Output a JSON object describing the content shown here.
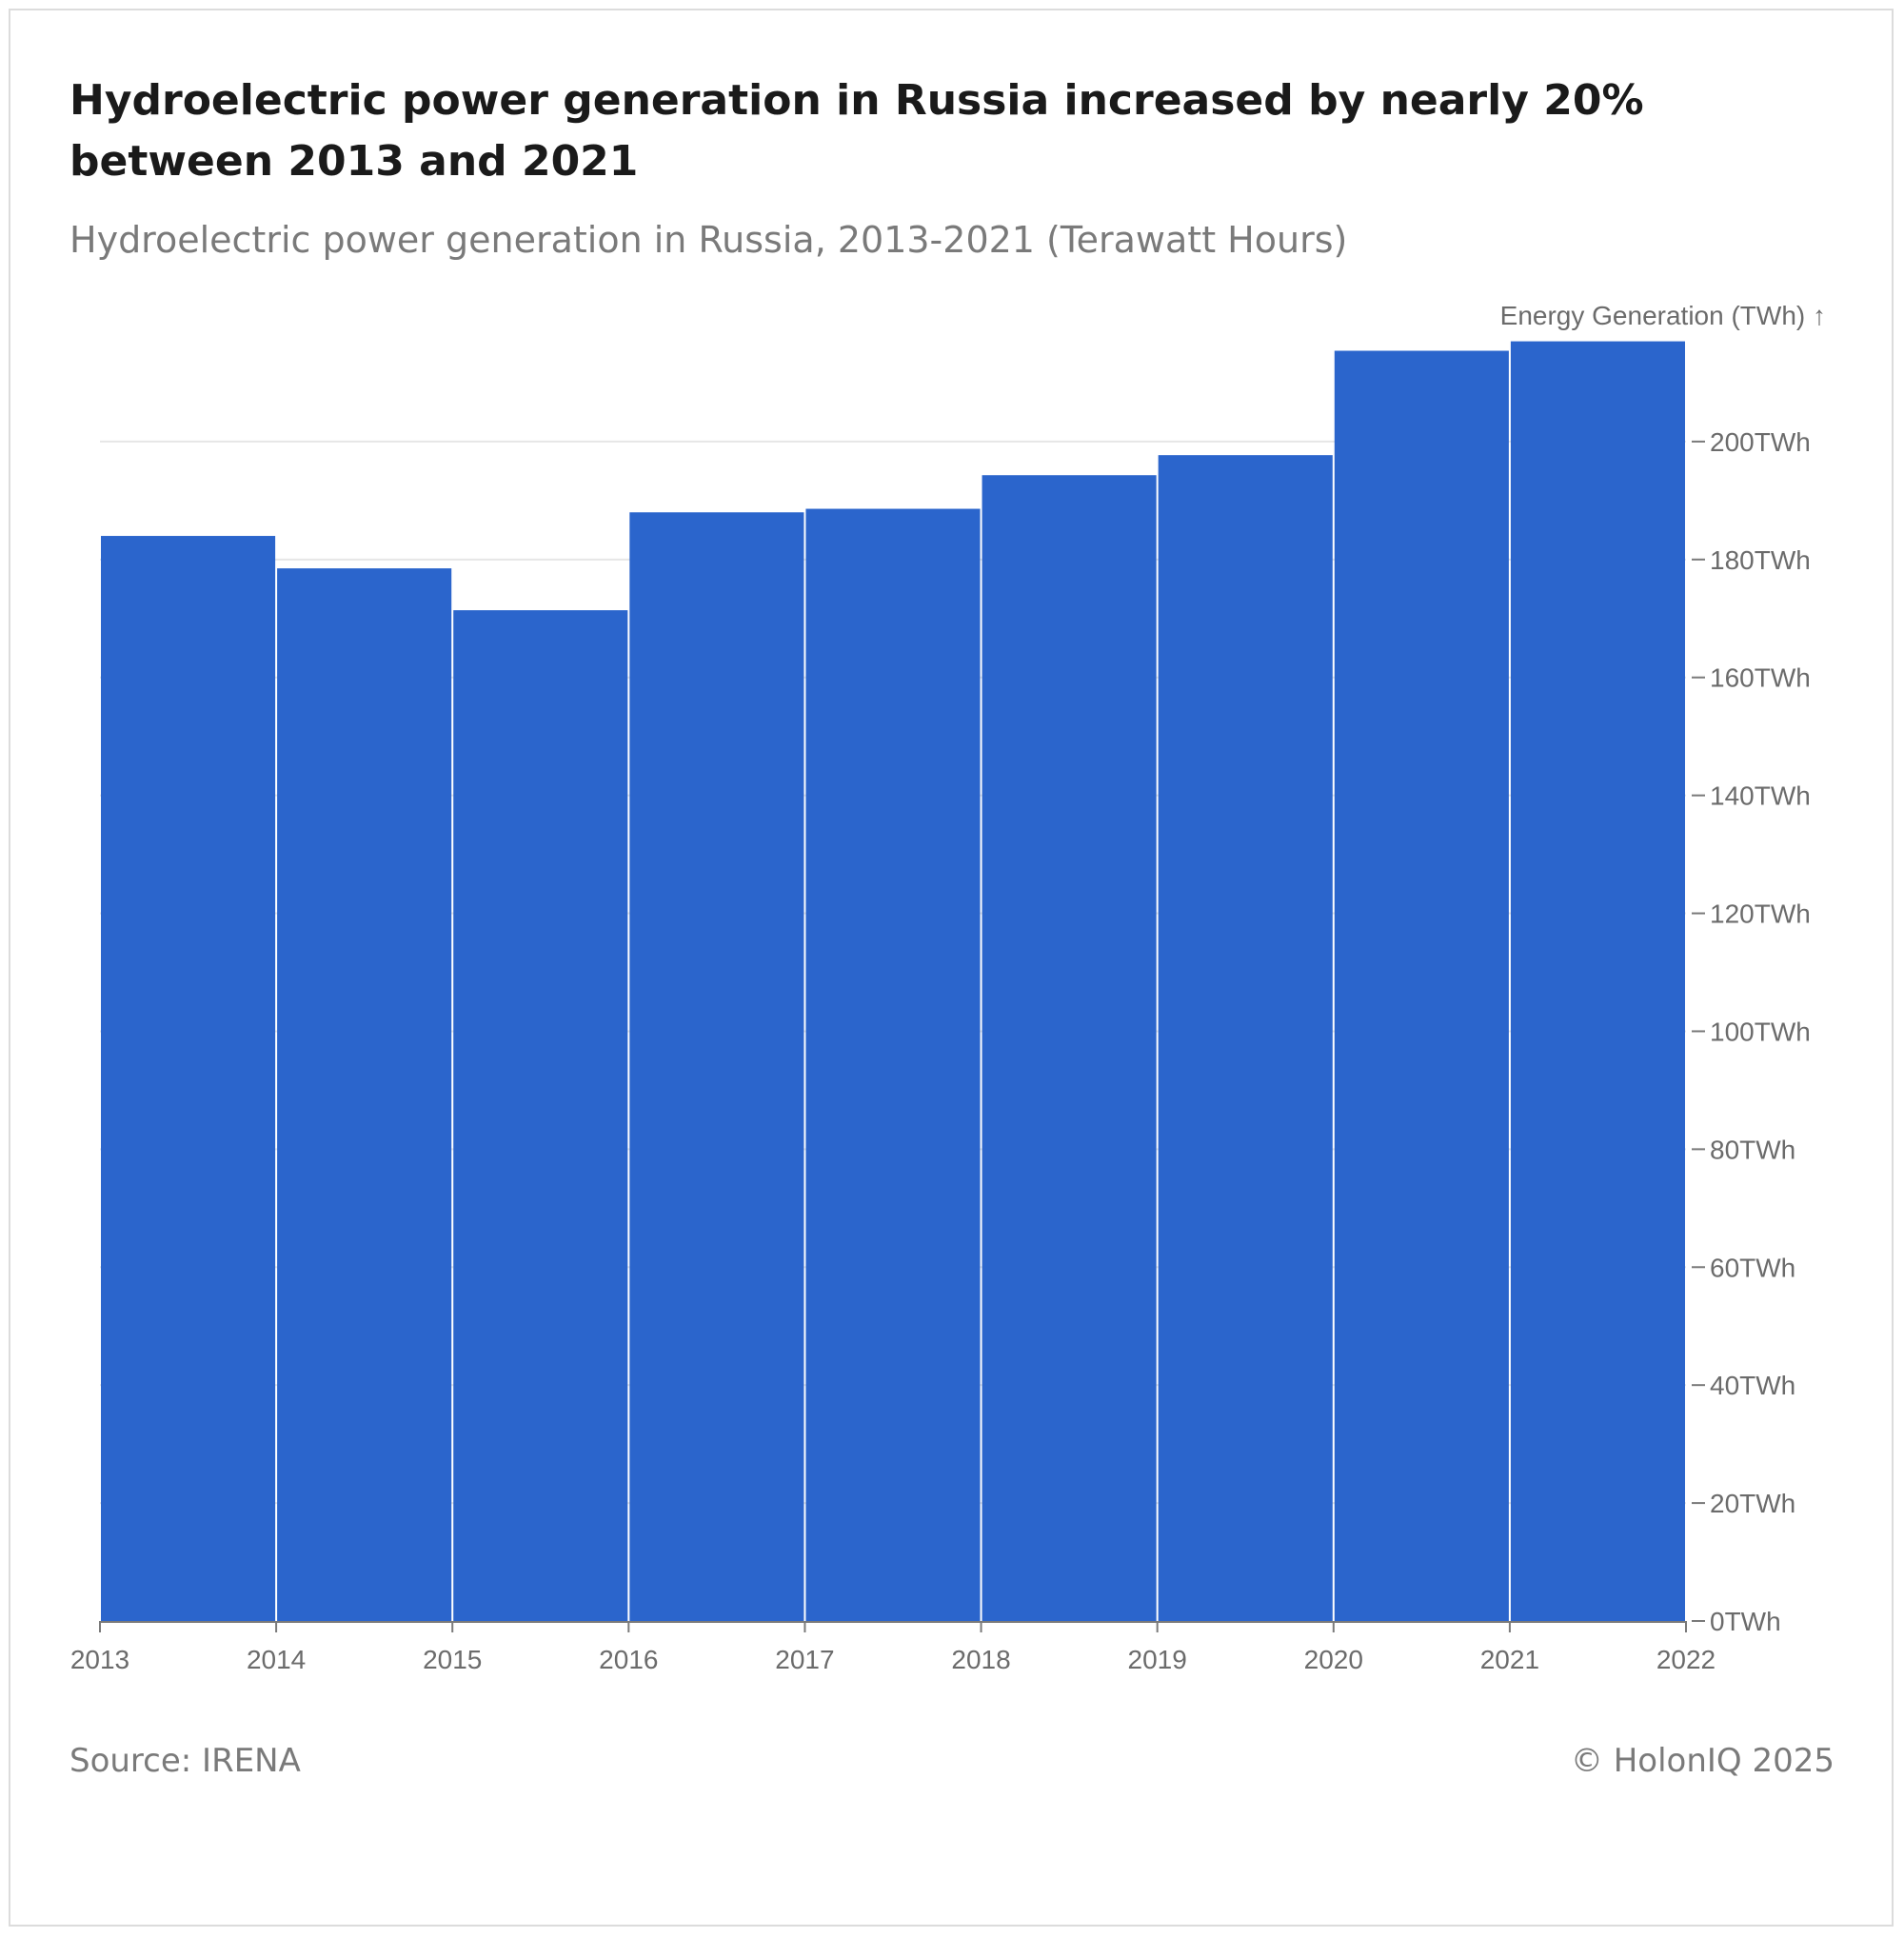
{
  "header": {
    "title": "Hydroelectric power generation in Russia increased by nearly 20% between 2013 and 2021",
    "subtitle": "Hydroelectric power generation in Russia, 2013-2021 (Terawatt Hours)"
  },
  "footer": {
    "source": "Source: IRENA",
    "copyright": "© HolonIQ 2025"
  },
  "colors": {
    "bar": "#2b65cc",
    "grid": "#e6e6e6",
    "axis": "#7a7a7a"
  },
  "chart_data": {
    "type": "bar",
    "title": "Hydroelectric power generation in Russia increased by nearly 20% between 2013 and 2021",
    "subtitle": "Hydroelectric power generation in Russia, 2013-2021 (Terawatt Hours)",
    "ylabel": "Energy Generation (TWh) ↑",
    "xlabel": "",
    "y_axis_position": "right",
    "ylim": [
      0,
      220
    ],
    "grid": true,
    "x_edges": [
      2013,
      2014,
      2015,
      2016,
      2017,
      2018,
      2019,
      2020,
      2021,
      2022
    ],
    "x_tick_labels": [
      "2013",
      "2014",
      "2015",
      "2016",
      "2017",
      "2018",
      "2019",
      "2020",
      "2021",
      "2022"
    ],
    "y_ticks": [
      0,
      20,
      40,
      60,
      80,
      100,
      120,
      140,
      160,
      180,
      200
    ],
    "y_tick_labels": [
      "0TWh",
      "20TWh",
      "40TWh",
      "60TWh",
      "80TWh",
      "100TWh",
      "120TWh",
      "140TWh",
      "160TWh",
      "180TWh",
      "200TWh"
    ],
    "categories": [
      "2013",
      "2014",
      "2015",
      "2016",
      "2017",
      "2018",
      "2019",
      "2020",
      "2021"
    ],
    "values": [
      184,
      178.5,
      171.4,
      188,
      188.6,
      194.3,
      197.7,
      215.4,
      217
    ]
  }
}
